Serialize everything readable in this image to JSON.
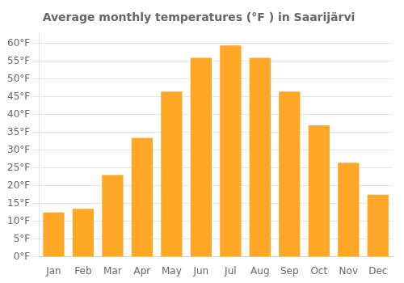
{
  "chart_data": {
    "type": "bar",
    "title": "Average monthly temperatures (°F ) in Saarijärvi",
    "categories": [
      "Jan",
      "Feb",
      "Mar",
      "Apr",
      "May",
      "Jun",
      "Jul",
      "Aug",
      "Sep",
      "Oct",
      "Nov",
      "Dec"
    ],
    "values": [
      12.5,
      13.5,
      23.0,
      33.5,
      46.5,
      56.0,
      59.5,
      56.0,
      46.5,
      37.0,
      26.5,
      17.5
    ],
    "color": "#FFA726",
    "ylim": [
      0,
      63
    ],
    "yticks": [
      {
        "value": 0,
        "label": "0°F"
      },
      {
        "value": 5,
        "label": "5°F"
      },
      {
        "value": 10,
        "label": "10°F"
      },
      {
        "value": 15,
        "label": "15°F"
      },
      {
        "value": 20,
        "label": "20°F"
      },
      {
        "value": 25,
        "label": "25°F"
      },
      {
        "value": 30,
        "label": "30°F"
      },
      {
        "value": 35,
        "label": "35°F"
      },
      {
        "value": 40,
        "label": "40°F"
      },
      {
        "value": 45,
        "label": "45°F"
      },
      {
        "value": 50,
        "label": "50°F"
      },
      {
        "value": 55,
        "label": "55°F"
      },
      {
        "value": 60,
        "label": "60°F"
      }
    ],
    "grid": true
  }
}
